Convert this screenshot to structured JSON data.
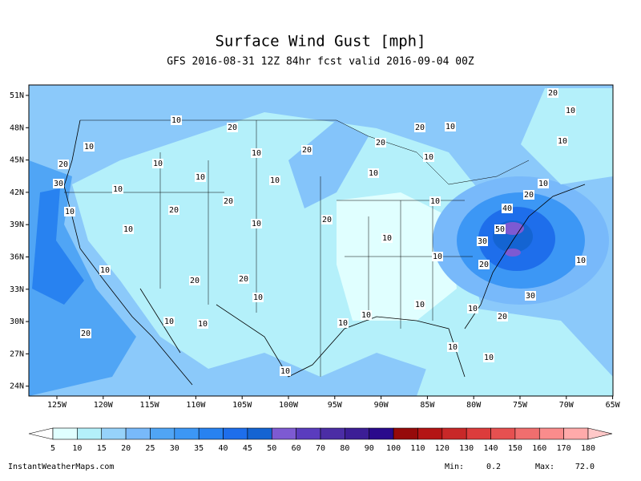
{
  "header": {
    "title": "Surface Wind Gust [mph]",
    "subtitle": "GFS 2016-08-31 12Z 84hr fcst valid 2016-09-04 00Z"
  },
  "map": {
    "lat_labels": [
      "51N",
      "48N",
      "45N",
      "42N",
      "39N",
      "36N",
      "33N",
      "30N",
      "27N",
      "24N"
    ],
    "lon_labels": [
      "125W",
      "120W",
      "115W",
      "110W",
      "105W",
      "100W",
      "95W",
      "90W",
      "85W",
      "80W",
      "75W",
      "70W",
      "65W"
    ],
    "contour_labels": [
      20,
      10,
      10,
      20,
      20,
      10,
      10,
      10,
      20,
      20,
      10,
      20,
      10,
      10,
      10,
      10,
      30,
      10,
      10,
      10,
      20,
      20,
      20,
      10,
      10,
      40,
      10,
      20,
      10,
      50,
      10,
      30,
      10,
      10,
      20,
      10,
      20,
      20,
      10,
      30,
      10,
      10,
      20,
      10,
      10,
      10,
      10,
      20,
      10,
      10,
      10
    ]
  },
  "colorbar": {
    "labels": [
      "5",
      "10",
      "15",
      "20",
      "25",
      "30",
      "35",
      "40",
      "45",
      "50",
      "60",
      "70",
      "80",
      "90",
      "100",
      "110",
      "120",
      "130",
      "140",
      "150",
      "160",
      "170",
      "180"
    ],
    "colors": [
      "#ffffff",
      "#e0ffff",
      "#b4f0fa",
      "#96d2fa",
      "#78b9fa",
      "#50a5f5",
      "#3c97f5",
      "#2882f0",
      "#1e6eeb",
      "#1464d2",
      "#7d5ad2",
      "#5a3cbe",
      "#4b2da5",
      "#3c1e96",
      "#2a0a8c",
      "#960a0a",
      "#b41414",
      "#c82828",
      "#dc3c3c",
      "#e65050",
      "#f06e6e",
      "#fa8c8c",
      "#ffaaaa",
      "#ffc8c8"
    ]
  },
  "footer": {
    "site": "InstantWeatherMaps.com",
    "min_label": "Min:",
    "min_value": "0.2",
    "max_label": "Max:",
    "max_value": "72.0"
  }
}
